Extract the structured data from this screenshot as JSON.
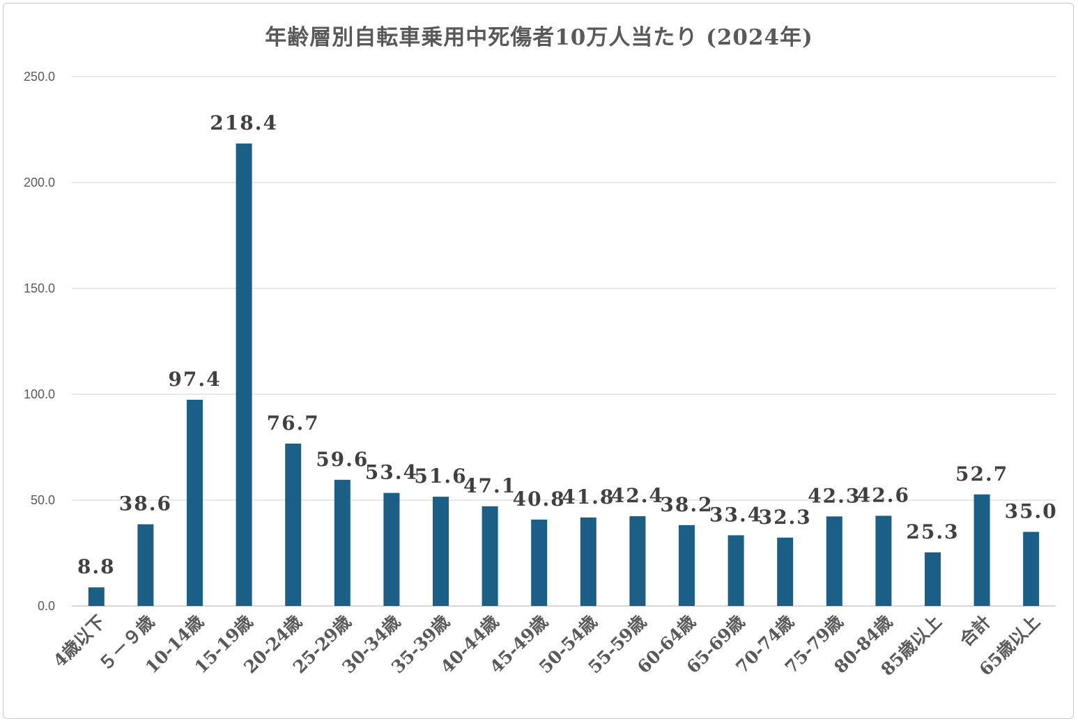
{
  "chart_data": {
    "type": "bar",
    "title": "年齢層別自転車乗用中死傷者10万人当たり (2024年)",
    "xlabel": "",
    "ylabel": "",
    "ylim": [
      0,
      250
    ],
    "yticks": [
      0,
      50,
      100,
      150,
      200,
      250
    ],
    "ytick_labels": [
      "0.0",
      "50.0",
      "100.0",
      "150.0",
      "200.0",
      "250.0"
    ],
    "grid": true,
    "legend": "none",
    "bar_color": "#1b5f86",
    "categories": [
      "4歳以下",
      "５－９歳",
      "10-14歳",
      "15-19歳",
      "20-24歳",
      "25-29歳",
      "30-34歳",
      "35-39歳",
      "40-44歳",
      "45-49歳",
      "50-54歳",
      "55-59歳",
      "60-64歳",
      "65-69歳",
      "70-74歳",
      "75-79歳",
      "80-84歳",
      "85歳以上",
      "合計",
      "65歳以上"
    ],
    "values": [
      8.8,
      38.6,
      97.4,
      218.4,
      76.7,
      59.6,
      53.4,
      51.6,
      47.1,
      40.8,
      41.8,
      42.4,
      38.2,
      33.4,
      32.3,
      42.3,
      42.6,
      25.3,
      52.7,
      35.0
    ],
    "data_labels": [
      "8.8",
      "38.6",
      "97.4",
      "218.4",
      "76.7",
      "59.6",
      "53.4",
      "51.6",
      "47.1",
      "40.8",
      "41.8",
      "42.4",
      "38.2",
      "33.4",
      "32.3",
      "42.3",
      "42.6",
      "25.3",
      "52.7",
      "35.0"
    ]
  }
}
